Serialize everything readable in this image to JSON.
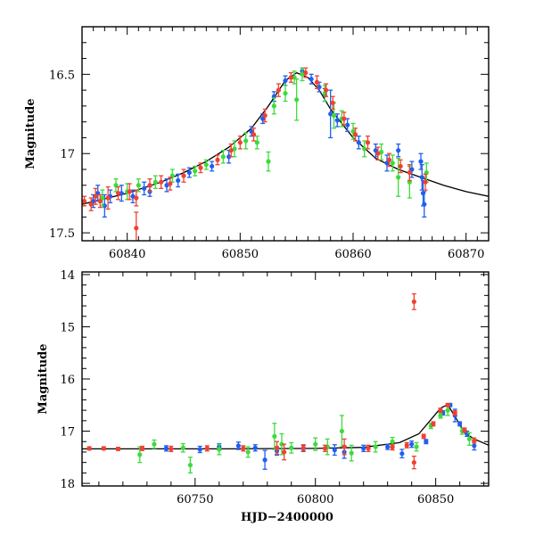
{
  "colors": {
    "blue": "#1f5ff0",
    "green": "#3ddb3d",
    "red": "#f0412f",
    "model": "#000000"
  },
  "chart_data": [
    {
      "type": "scatter",
      "title": "",
      "xlabel": "",
      "ylabel": "Magnitude",
      "xlim": [
        60836,
        60872
      ],
      "ylim": [
        17.55,
        16.2
      ],
      "y_inverted": true,
      "grid": false,
      "legend": "none",
      "xticks": [
        60840,
        60850,
        60860,
        60870
      ],
      "xtick_labels": [
        "60840",
        "60850",
        "60860",
        "60870"
      ],
      "yticks": [
        16.5,
        17,
        17.5
      ],
      "ytick_labels": [
        "16.5",
        "17",
        "17.5"
      ],
      "model": {
        "x": [
          60836,
          60840,
          60843,
          60845,
          60847,
          60849,
          60851,
          60852.5,
          60854,
          60855,
          60856,
          60857,
          60858,
          60860,
          60862,
          60864,
          60866,
          60868,
          60870,
          60872
        ],
        "y": [
          17.32,
          17.25,
          17.18,
          17.12,
          17.05,
          16.96,
          16.84,
          16.7,
          16.54,
          16.49,
          16.52,
          16.6,
          16.72,
          16.9,
          17.03,
          17.1,
          17.15,
          17.2,
          17.24,
          17.27
        ]
      },
      "series": [
        {
          "color": "blue",
          "points": [
            [
              60837.0,
              17.3,
              0.04
            ],
            [
              60837.4,
              17.25,
              0.05
            ],
            [
              60838.0,
              17.33,
              0.07
            ],
            [
              60838.5,
              17.27,
              0.04
            ],
            [
              60839.5,
              17.25,
              0.05
            ],
            [
              60840.5,
              17.27,
              0.04
            ],
            [
              60841.5,
              17.22,
              0.04
            ],
            [
              60842.0,
              17.24,
              0.03
            ],
            [
              60843.5,
              17.2,
              0.04
            ],
            [
              60844.5,
              17.17,
              0.04
            ],
            [
              60845.5,
              17.12,
              0.03
            ],
            [
              60847.5,
              17.08,
              0.03
            ],
            [
              60849.0,
              17.02,
              0.04
            ],
            [
              60851.0,
              16.86,
              0.03
            ],
            [
              60852.0,
              16.78,
              0.03
            ],
            [
              60853.0,
              16.64,
              0.03
            ],
            [
              60854.0,
              16.54,
              0.03
            ],
            [
              60855.5,
              16.48,
              0.02
            ],
            [
              60856.3,
              16.53,
              0.03
            ],
            [
              60857.0,
              16.58,
              0.03
            ],
            [
              60857.5,
              16.63,
              0.04
            ],
            [
              60858.0,
              16.75,
              0.15
            ],
            [
              60858.6,
              16.79,
              0.04
            ],
            [
              60859.5,
              16.82,
              0.04
            ],
            [
              60860.5,
              16.93,
              0.04
            ],
            [
              60862.0,
              16.98,
              0.04
            ],
            [
              60863.0,
              17.06,
              0.05
            ],
            [
              60864.0,
              16.98,
              0.04
            ],
            [
              60865.2,
              17.1,
              0.05
            ],
            [
              60866.0,
              17.05,
              0.05
            ],
            [
              60866.1,
              17.15,
              0.08
            ],
            [
              60866.2,
              17.25,
              0.08
            ],
            [
              60866.3,
              17.32,
              0.08
            ]
          ]
        },
        {
          "color": "green",
          "points": [
            [
              60837.8,
              17.28,
              0.05
            ],
            [
              60839.0,
              17.2,
              0.04
            ],
            [
              60840.0,
              17.24,
              0.05
            ],
            [
              60841.0,
              17.2,
              0.04
            ],
            [
              60842.5,
              17.18,
              0.04
            ],
            [
              60844.0,
              17.14,
              0.04
            ],
            [
              60846.0,
              17.11,
              0.03
            ],
            [
              60847.0,
              17.07,
              0.03
            ],
            [
              60848.5,
              17.02,
              0.04
            ],
            [
              60849.5,
              16.97,
              0.05
            ],
            [
              60850.5,
              16.92,
              0.05
            ],
            [
              60851.5,
              16.93,
              0.04
            ],
            [
              60852.5,
              17.05,
              0.06
            ],
            [
              60853.0,
              16.7,
              0.05
            ],
            [
              60854.0,
              16.62,
              0.05
            ],
            [
              60854.8,
              16.52,
              0.04
            ],
            [
              60855.0,
              16.66,
              0.13
            ],
            [
              60855.5,
              16.5,
              0.04
            ],
            [
              60857.5,
              16.62,
              0.05
            ],
            [
              60858.3,
              16.76,
              0.08
            ],
            [
              60859.0,
              16.78,
              0.05
            ],
            [
              60860.0,
              16.86,
              0.05
            ],
            [
              60861.0,
              16.97,
              0.05
            ],
            [
              60862.5,
              16.99,
              0.05
            ],
            [
              60863.5,
              17.06,
              0.05
            ],
            [
              60864.0,
              17.15,
              0.12
            ],
            [
              60865.0,
              17.18,
              0.1
            ],
            [
              60866.5,
              17.12,
              0.06
            ]
          ]
        },
        {
          "color": "red",
          "points": [
            [
              60836.2,
              17.3,
              0.03
            ],
            [
              60836.8,
              17.32,
              0.04
            ],
            [
              60837.2,
              17.27,
              0.05
            ],
            [
              60837.6,
              17.3,
              0.04
            ],
            [
              60838.3,
              17.28,
              0.07
            ],
            [
              60839.2,
              17.25,
              0.04
            ],
            [
              60840.2,
              17.24,
              0.05
            ],
            [
              60840.8,
              17.28,
              0.05
            ],
            [
              60840.8,
              17.47,
              0.1
            ],
            [
              60842.0,
              17.2,
              0.04
            ],
            [
              60843.0,
              17.18,
              0.04
            ],
            [
              60843.8,
              17.19,
              0.04
            ],
            [
              60845.0,
              17.14,
              0.04
            ],
            [
              60846.5,
              17.09,
              0.03
            ],
            [
              60848.0,
              17.04,
              0.03
            ],
            [
              60849.2,
              16.98,
              0.04
            ],
            [
              60850.0,
              16.93,
              0.04
            ],
            [
              60851.2,
              16.88,
              0.04
            ],
            [
              60852.2,
              16.76,
              0.04
            ],
            [
              60853.4,
              16.6,
              0.04
            ],
            [
              60854.5,
              16.52,
              0.03
            ],
            [
              60855.8,
              16.49,
              0.03
            ],
            [
              60856.8,
              16.55,
              0.04
            ],
            [
              60857.6,
              16.6,
              0.04
            ],
            [
              60858.2,
              16.68,
              0.04
            ],
            [
              60859.2,
              16.78,
              0.04
            ],
            [
              60860.2,
              16.88,
              0.04
            ],
            [
              60861.3,
              16.93,
              0.04
            ],
            [
              60862.2,
              17.0,
              0.04
            ],
            [
              60863.2,
              17.04,
              0.04
            ],
            [
              60864.2,
              17.08,
              0.04
            ],
            [
              60865.0,
              17.12,
              0.05
            ],
            [
              60866.4,
              17.18,
              0.05
            ]
          ]
        }
      ]
    },
    {
      "type": "scatter",
      "title": "",
      "xlabel": "HJD−2400000",
      "ylabel": "Magnitude",
      "xlim": [
        60703,
        60872
      ],
      "ylim": [
        18.05,
        13.95
      ],
      "y_inverted": true,
      "grid": false,
      "legend": "none",
      "xticks": [
        60750,
        60800,
        60850
      ],
      "xtick_labels": [
        "60750",
        "60800",
        "60850"
      ],
      "yticks": [
        14,
        15,
        16,
        17,
        18
      ],
      "ytick_labels": [
        "14",
        "15",
        "16",
        "17",
        "18"
      ],
      "model": {
        "x": [
          60703,
          60760,
          60800,
          60820,
          60835,
          60843,
          60848,
          60852,
          60855,
          60858,
          60862,
          60866,
          60872
        ],
        "y": [
          17.34,
          17.34,
          17.33,
          17.31,
          17.22,
          17.05,
          16.78,
          16.56,
          16.49,
          16.72,
          17.03,
          17.15,
          17.27
        ]
      },
      "series": [
        {
          "color": "blue",
          "points": [
            [
              60738,
              17.33,
              0.05
            ],
            [
              60752,
              17.35,
              0.06
            ],
            [
              60760,
              17.3,
              0.06
            ],
            [
              60768,
              17.28,
              0.07
            ],
            [
              60775,
              17.32,
              0.06
            ],
            [
              60779,
              17.55,
              0.18
            ],
            [
              60784,
              17.38,
              0.08
            ],
            [
              60795,
              17.33,
              0.06
            ],
            [
              60808,
              17.36,
              0.1
            ],
            [
              60812,
              17.4,
              0.12
            ],
            [
              60820,
              17.33,
              0.06
            ],
            [
              60830,
              17.3,
              0.05
            ],
            [
              60836,
              17.43,
              0.08
            ],
            [
              60840,
              17.25,
              0.06
            ],
            [
              60846,
              17.2,
              0.04
            ],
            [
              60853,
              16.65,
              0.04
            ],
            [
              60856,
              16.5,
              0.03
            ],
            [
              60858,
              16.7,
              0.12
            ],
            [
              60860,
              16.86,
              0.04
            ],
            [
              60863,
              17.05,
              0.05
            ],
            [
              60866,
              17.28,
              0.08
            ]
          ]
        },
        {
          "color": "green",
          "points": [
            [
              60727,
              17.45,
              0.15
            ],
            [
              60733,
              17.25,
              0.08
            ],
            [
              60745,
              17.32,
              0.08
            ],
            [
              60748,
              17.65,
              0.15
            ],
            [
              60760,
              17.35,
              0.1
            ],
            [
              60772,
              17.4,
              0.1
            ],
            [
              60783,
              17.1,
              0.25
            ],
            [
              60786,
              17.25,
              0.2
            ],
            [
              60790,
              17.32,
              0.1
            ],
            [
              60800,
              17.25,
              0.12
            ],
            [
              60805,
              17.3,
              0.15
            ],
            [
              60811,
              17.0,
              0.3
            ],
            [
              60815,
              17.42,
              0.15
            ],
            [
              60825,
              17.3,
              0.1
            ],
            [
              60832,
              17.2,
              0.08
            ],
            [
              60842,
              17.3,
              0.08
            ],
            [
              60848,
              16.9,
              0.05
            ],
            [
              60852,
              16.7,
              0.05
            ],
            [
              60855,
              16.6,
              0.1
            ],
            [
              60861,
              17.0,
              0.06
            ],
            [
              60864,
              17.15,
              0.12
            ]
          ]
        },
        {
          "color": "red",
          "points": [
            [
              60706,
              17.33,
              0.03
            ],
            [
              60712,
              17.33,
              0.03
            ],
            [
              60718,
              17.34,
              0.03
            ],
            [
              60728,
              17.33,
              0.04
            ],
            [
              60740,
              17.34,
              0.05
            ],
            [
              60755,
              17.33,
              0.05
            ],
            [
              60770,
              17.33,
              0.05
            ],
            [
              60784,
              17.32,
              0.12
            ],
            [
              60787,
              17.4,
              0.15
            ],
            [
              60795,
              17.32,
              0.06
            ],
            [
              60804,
              17.33,
              0.06
            ],
            [
              60812,
              17.3,
              0.15
            ],
            [
              60822,
              17.33,
              0.06
            ],
            [
              60832,
              17.31,
              0.05
            ],
            [
              60838,
              17.27,
              0.05
            ],
            [
              60841,
              14.52,
              0.15
            ],
            [
              60841,
              17.6,
              0.12
            ],
            [
              60845,
              17.1,
              0.04
            ],
            [
              60849,
              16.86,
              0.04
            ],
            [
              60852,
              16.6,
              0.04
            ],
            [
              60855,
              16.5,
              0.03
            ],
            [
              60858,
              16.65,
              0.04
            ],
            [
              60862,
              16.98,
              0.04
            ],
            [
              60866,
              17.18,
              0.05
            ]
          ]
        }
      ]
    }
  ]
}
